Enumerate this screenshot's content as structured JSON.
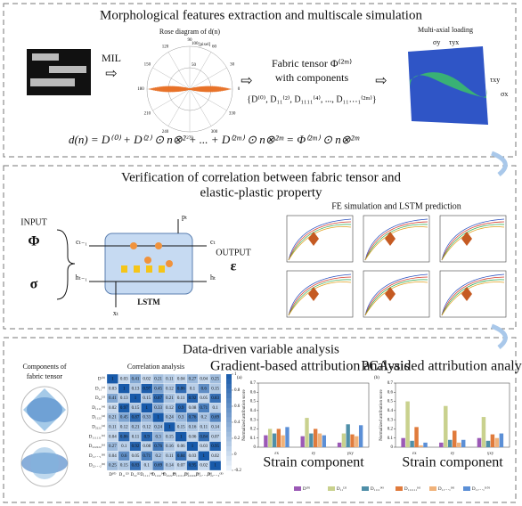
{
  "section1": {
    "title": "Morphological features extraction and multiscale simulation",
    "mil": "MIL",
    "rose": {
      "title": "Rose diagram of d(n)",
      "unit": "[pixel]",
      "angles": [
        0,
        30,
        60,
        90,
        120,
        150,
        180,
        210,
        240,
        270,
        300,
        330
      ],
      "radial_labels": [
        50,
        100
      ]
    },
    "fabric": {
      "line1": "Fabric tensor Φ⁽²ᵐ⁾",
      "line2": "with components",
      "components": "{D⁽⁰⁾, D₁₁⁽²⁾, D₁₁₁₁⁽⁴⁾, ..., D₁₁…₁⁽²ᵐ⁾}"
    },
    "loading": {
      "title": "Multi-axial loading",
      "labels": [
        "σy",
        "τyx",
        "τxy",
        "σx"
      ]
    },
    "equation": "d(n) = D⁽⁰⁾ + D⁽²⁾ ⊙ n⊗² + ... + D⁽²ᵐ⁾ ⊙ n⊗²ᵐ = Φ⁽²ᵐ⁾ ⊙ n⊗²ᵐ"
  },
  "section2": {
    "title_lines": [
      "Verification of correlation between fabric tensor and",
      "elastic-plastic property"
    ],
    "input": "INPUT",
    "inputs": [
      "Φ",
      "σ"
    ],
    "lstm": "LSTM",
    "lstm_labels": [
      "cₜ₋₁",
      "hₜ₋₁",
      "xₜ",
      "cₜ",
      "hₜ",
      "pₜ"
    ],
    "output": "OUTPUT",
    "output_symbol": "ε",
    "fe_title": "FE simulation and LSTM prediction"
  },
  "section3": {
    "title": "Data-driven variable analysis",
    "components_title_lines": [
      "Components of",
      "fabric tensor"
    ],
    "correlation": {
      "title": "Correlation analysis",
      "labels": [
        "D⁽⁰⁾",
        "D₁₁⁽²⁾",
        "D₂₂⁽²⁾",
        "D₁₁₁₁⁽⁴⁾",
        "D₁₁₂₂⁽⁴⁾",
        "D₂₂₂₂⁽⁴⁾",
        "D₁₁₁₁₁₁⁽⁶⁾",
        "D₂₂₂₂₂₂⁽⁶⁾",
        "D₁₁…₁⁽⁸⁾",
        "D₂₂…₂⁽⁸⁾"
      ],
      "matrix": [
        [
          1,
          0.03,
          0.41,
          0.02,
          0.21,
          0.11,
          0.04,
          0.27,
          0.04,
          0.25
        ],
        [
          0.03,
          1,
          0.13,
          0.97,
          0.45,
          0.12,
          0.86,
          0.1,
          0.6,
          0.15
        ],
        [
          0.41,
          0.13,
          1,
          0.15,
          0.87,
          0.21,
          0.11,
          0.92,
          0.05,
          0.83
        ],
        [
          0.02,
          0.97,
          0.15,
          1,
          0.33,
          0.12,
          0.9,
          0.08,
          0.71,
          0.1
        ],
        [
          0.21,
          0.45,
          0.87,
          0.33,
          1,
          0.24,
          0.3,
          0.76,
          0.2,
          0.69
        ],
        [
          0.11,
          0.12,
          0.21,
          0.12,
          0.24,
          1,
          0.15,
          0.16,
          0.11,
          0.14
        ],
        [
          0.04,
          0.86,
          0.11,
          0.9,
          0.3,
          0.15,
          1,
          0.06,
          0.84,
          0.07
        ],
        [
          0.27,
          0.1,
          0.92,
          0.08,
          0.76,
          0.16,
          0.06,
          1,
          0.03,
          0.95
        ],
        [
          0.04,
          0.6,
          0.05,
          0.71,
          0.2,
          0.11,
          0.84,
          0.03,
          1,
          0.02
        ],
        [
          0.25,
          0.15,
          0.83,
          0.1,
          0.69,
          0.14,
          0.07,
          0.95,
          0.02,
          1
        ]
      ],
      "colorbar_lim": [
        -0.2,
        1
      ],
      "colorbar_ticks": [
        -0.2,
        0,
        0.2,
        0.4,
        0.6,
        0.8,
        1
      ]
    },
    "attribution": {
      "type": "bar",
      "y_label": "Normalized attribution score",
      "x_label": "Strain component",
      "categories": [
        "εx",
        "εy",
        "γxy"
      ],
      "ylim": [
        0,
        0.7
      ],
      "yticks": [
        0,
        0.1,
        0.2,
        0.3,
        0.4,
        0.5,
        0.6,
        0.7
      ],
      "series": [
        {
          "name": "D⁽⁰⁾",
          "color": "#9b59b6"
        },
        {
          "name": "D₁₁⁽²⁾",
          "color": "#c9d18e"
        },
        {
          "name": "D₁₁₁₁⁽⁴⁾",
          "color": "#4f8fa8"
        },
        {
          "name": "D₁₁₁₁₁₁⁽⁶⁾",
          "color": "#e07b3c"
        },
        {
          "name": "D₁₁…₁⁽⁸⁾",
          "color": "#f0b27a"
        },
        {
          "name": "D₁₁…₁⁽¹⁰⁾",
          "color": "#5b8fd6"
        }
      ],
      "charts": [
        {
          "panel": "(a)",
          "title": "Gradient-based attribution analysis",
          "values": [
            [
              0.13,
              0.12,
              0.05
            ],
            [
              0.2,
              0.32,
              0.15
            ],
            [
              0.15,
              0.15,
              0.25
            ],
            [
              0.2,
              0.2,
              0.14
            ],
            [
              0.13,
              0.15,
              0.12
            ],
            [
              0.22,
              0.13,
              0.24
            ]
          ]
        },
        {
          "panel": "(b)",
          "title": "PCA-aided attribution analysis",
          "values": [
            [
              0.1,
              0.05,
              0.1
            ],
            [
              0.5,
              0.45,
              0.33
            ],
            [
              0.07,
              0.08,
              0.07
            ],
            [
              0.22,
              0.18,
              0.14
            ],
            [
              0.02,
              0.05,
              0.1
            ],
            [
              0.05,
              0.08,
              0.15
            ]
          ]
        }
      ]
    }
  }
}
